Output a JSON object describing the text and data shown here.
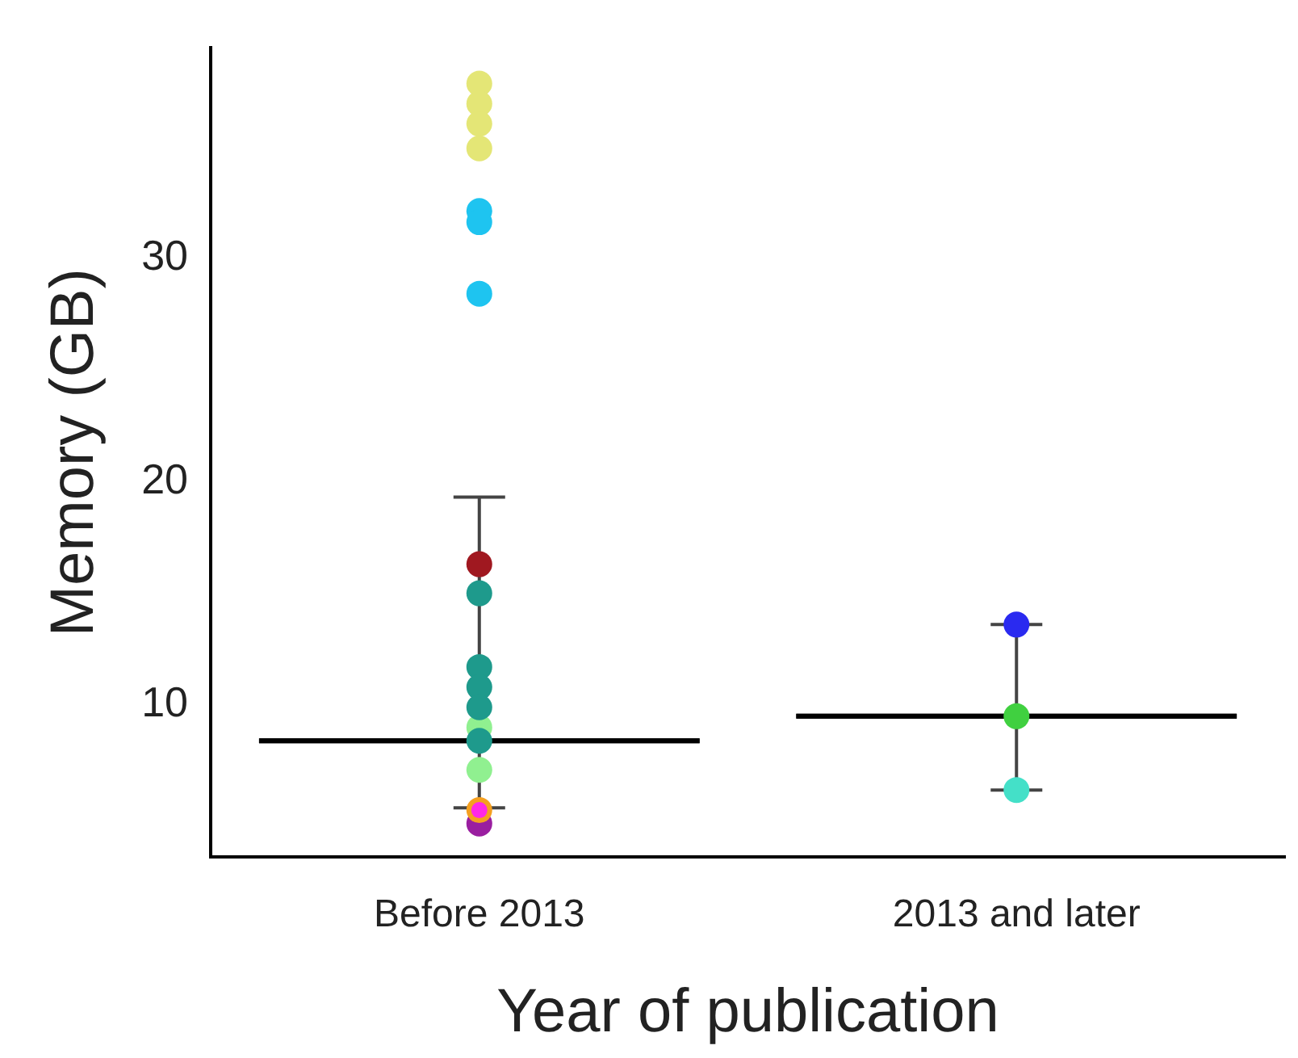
{
  "chart_data": {
    "type": "scatter",
    "xlabel": "Year of publication",
    "ylabel": "Memory (GB)",
    "categories": [
      "Before 2013",
      "2013 and later"
    ],
    "ylim": [
      3.2,
      39.4
    ],
    "yticks": [
      10,
      20,
      30
    ],
    "marker": "circle",
    "series": [
      {
        "color": "#e4e676",
        "x": [
          "Before 2013",
          "Before 2013",
          "Before 2013",
          "Before 2013"
        ],
        "values": [
          37.8,
          36.9,
          36.0,
          34.9
        ]
      },
      {
        "color": "#1ec4f0",
        "x": [
          "Before 2013",
          "Before 2013",
          "Before 2013"
        ],
        "values": [
          32.1,
          31.6,
          28.4
        ]
      },
      {
        "color": "#a01820",
        "x": [
          "Before 2013"
        ],
        "values": [
          16.3
        ]
      },
      {
        "color": "#1e9a8c",
        "x": [
          "Before 2013",
          "Before 2013",
          "Before 2013",
          "Before 2013",
          "Before 2013"
        ],
        "values": [
          15.0,
          11.7,
          10.8,
          9.9,
          8.4
        ]
      },
      {
        "color": "#90f090",
        "x": [
          "Before 2013",
          "Before 2013"
        ],
        "values": [
          9.0,
          7.1
        ]
      },
      {
        "color": "#f5a020",
        "x": [
          "Before 2013"
        ],
        "values": [
          5.3
        ]
      },
      {
        "color": "#ff28e6",
        "x": [
          "Before 2013"
        ],
        "values": [
          5.3
        ]
      },
      {
        "color": "#9a1ea0",
        "x": [
          "Before 2013"
        ],
        "values": [
          4.7
        ]
      },
      {
        "color": "#2a2af0",
        "x": [
          "2013 and later"
        ],
        "values": [
          13.6
        ]
      },
      {
        "color": "#40d040",
        "x": [
          "2013 and later"
        ],
        "values": [
          9.5
        ]
      },
      {
        "color": "#44e0c8",
        "x": [
          "2013 and later"
        ],
        "values": [
          6.2
        ]
      },
      {
        "type": "box",
        "color": "#000000",
        "boxes": [
          {
            "low": 5.4,
            "q1": 8.4,
            "median": 8.4,
            "q3": 8.4,
            "high": 19.3
          },
          {
            "low": 6.2,
            "q1": 9.5,
            "median": 9.5,
            "q3": 9.5,
            "high": 13.6
          }
        ]
      }
    ]
  }
}
